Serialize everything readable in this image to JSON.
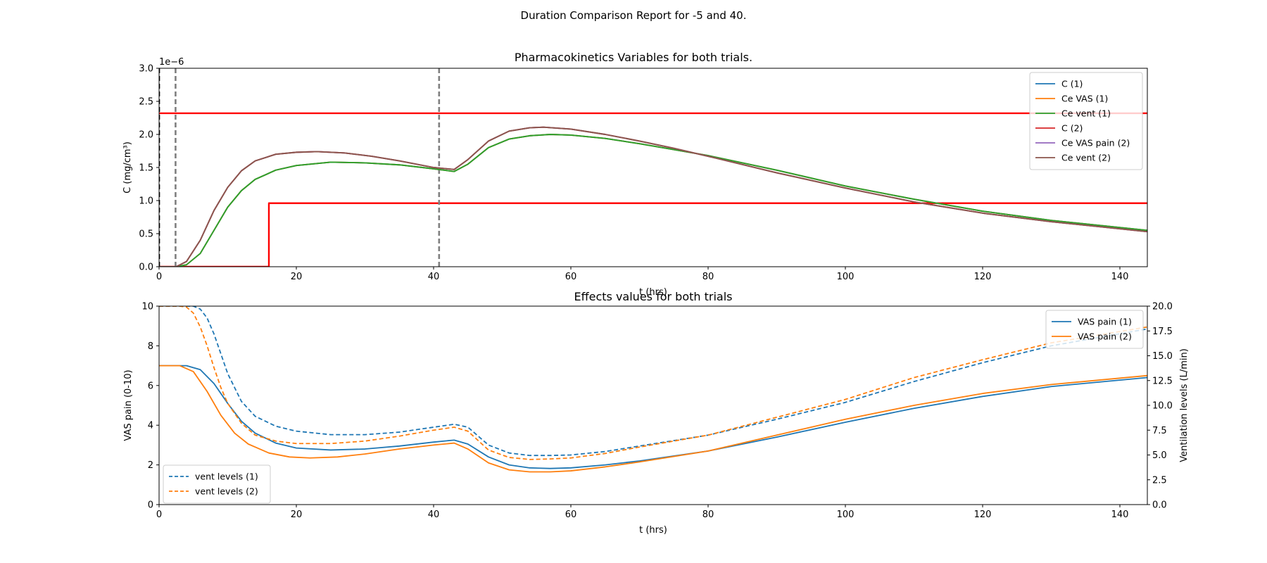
{
  "figure": {
    "suptitle": "Duration Comparison Report for -5 and 40."
  },
  "colors": {
    "blue": "#1f77b4",
    "orange": "#ff7f0e",
    "green": "#2ca02c",
    "red": "#d62728",
    "purple": "#9467bd",
    "brown": "#8c564b",
    "threshold": "#ff0000",
    "marker": "#808080"
  },
  "chart_data": [
    {
      "type": "line",
      "title": "Pharmacokinetics Variables for both trials.",
      "xlabel": "t (hrs)",
      "ylabel": "C (mg/cm³)",
      "offset_text": "1e−6",
      "xlim": [
        0,
        144
      ],
      "ylim": [
        0,
        3.0
      ],
      "xticks": [
        0,
        20,
        40,
        60,
        80,
        100,
        120,
        140
      ],
      "yticks": [
        0.0,
        0.5,
        1.0,
        1.5,
        2.0,
        2.5,
        3.0
      ],
      "grid": false,
      "legend_position": "top-right",
      "series": [
        {
          "name": "C (1)",
          "color": "#1f77b4",
          "x": [
            0,
            2.5,
            4,
            6,
            8,
            10,
            12,
            14,
            17,
            20,
            25,
            30,
            35,
            40,
            43,
            45,
            48,
            51,
            54,
            57,
            60,
            65,
            70,
            75,
            80,
            90,
            100,
            110,
            120,
            130,
            144
          ],
          "y": [
            0,
            0,
            0.03,
            0.2,
            0.55,
            0.9,
            1.15,
            1.32,
            1.46,
            1.53,
            1.58,
            1.57,
            1.54,
            1.48,
            1.44,
            1.55,
            1.8,
            1.93,
            1.98,
            2.0,
            1.99,
            1.94,
            1.86,
            1.77,
            1.68,
            1.46,
            1.22,
            1.02,
            0.84,
            0.7,
            0.55
          ]
        },
        {
          "name": "Ce VAS (1)",
          "color": "#ff7f0e",
          "x": [
            0,
            2.5,
            4,
            6,
            8,
            10,
            12,
            14,
            17,
            20,
            25,
            30,
            35,
            40,
            43,
            45,
            48,
            51,
            54,
            57,
            60,
            65,
            70,
            75,
            80,
            90,
            100,
            110,
            120,
            130,
            144
          ],
          "y": [
            0,
            0,
            0.03,
            0.2,
            0.55,
            0.9,
            1.15,
            1.32,
            1.46,
            1.53,
            1.58,
            1.57,
            1.54,
            1.48,
            1.44,
            1.55,
            1.8,
            1.93,
            1.98,
            2.0,
            1.99,
            1.94,
            1.86,
            1.77,
            1.68,
            1.46,
            1.22,
            1.02,
            0.84,
            0.7,
            0.55
          ]
        },
        {
          "name": "Ce vent (1)",
          "color": "#2ca02c",
          "x": [
            0,
            2.5,
            4,
            6,
            8,
            10,
            12,
            14,
            17,
            20,
            25,
            30,
            35,
            40,
            43,
            45,
            48,
            51,
            54,
            57,
            60,
            65,
            70,
            75,
            80,
            90,
            100,
            110,
            120,
            130,
            144
          ],
          "y": [
            0,
            0,
            0.03,
            0.2,
            0.55,
            0.9,
            1.15,
            1.32,
            1.46,
            1.53,
            1.58,
            1.57,
            1.54,
            1.48,
            1.44,
            1.55,
            1.8,
            1.93,
            1.98,
            2.0,
            1.99,
            1.94,
            1.86,
            1.77,
            1.68,
            1.46,
            1.22,
            1.02,
            0.84,
            0.7,
            0.55
          ]
        },
        {
          "name": "C (2)",
          "color": "#d62728",
          "x": [
            0,
            2.5,
            4,
            6,
            8,
            10,
            12,
            14,
            17,
            20,
            23,
            27,
            31,
            35,
            40,
            43,
            45,
            48,
            51,
            54,
            56,
            60,
            65,
            70,
            75,
            80,
            90,
            100,
            110,
            120,
            130,
            144
          ],
          "y": [
            0,
            0,
            0.08,
            0.4,
            0.85,
            1.2,
            1.45,
            1.6,
            1.7,
            1.73,
            1.74,
            1.72,
            1.67,
            1.6,
            1.5,
            1.47,
            1.62,
            1.9,
            2.05,
            2.1,
            2.11,
            2.08,
            2.0,
            1.9,
            1.79,
            1.67,
            1.42,
            1.19,
            0.98,
            0.81,
            0.68,
            0.53
          ]
        },
        {
          "name": "Ce VAS pain (2)",
          "color": "#9467bd",
          "x": [
            0,
            2.5,
            4,
            6,
            8,
            10,
            12,
            14,
            17,
            20,
            23,
            27,
            31,
            35,
            40,
            43,
            45,
            48,
            51,
            54,
            56,
            60,
            65,
            70,
            75,
            80,
            90,
            100,
            110,
            120,
            130,
            144
          ],
          "y": [
            0,
            0,
            0.08,
            0.4,
            0.85,
            1.2,
            1.45,
            1.6,
            1.7,
            1.73,
            1.74,
            1.72,
            1.67,
            1.6,
            1.5,
            1.47,
            1.62,
            1.9,
            2.05,
            2.1,
            2.11,
            2.08,
            2.0,
            1.9,
            1.79,
            1.67,
            1.42,
            1.19,
            0.98,
            0.81,
            0.68,
            0.53
          ]
        },
        {
          "name": "Ce vent (2)",
          "color": "#8c564b",
          "x": [
            0,
            2.5,
            4,
            6,
            8,
            10,
            12,
            14,
            17,
            20,
            23,
            27,
            31,
            35,
            40,
            43,
            45,
            48,
            51,
            54,
            56,
            60,
            65,
            70,
            75,
            80,
            90,
            100,
            110,
            120,
            130,
            144
          ],
          "y": [
            0,
            0,
            0.08,
            0.4,
            0.85,
            1.2,
            1.45,
            1.6,
            1.7,
            1.73,
            1.74,
            1.72,
            1.67,
            1.6,
            1.5,
            1.47,
            1.62,
            1.9,
            2.05,
            2.1,
            2.11,
            2.08,
            2.0,
            1.9,
            1.79,
            1.67,
            1.42,
            1.19,
            0.98,
            0.81,
            0.68,
            0.53
          ]
        }
      ],
      "reference_lines": [
        {
          "color": "#ff0000",
          "x": [
            0,
            144
          ],
          "y": [
            2.32,
            2.32
          ]
        },
        {
          "color": "#ff0000",
          "x": [
            0,
            16,
            16,
            144
          ],
          "y": [
            0,
            0,
            0.96,
            0.96
          ]
        },
        {
          "color": "#000000",
          "dash": "dashed",
          "x": [
            0,
            0
          ],
          "y": [
            0,
            3.0
          ]
        },
        {
          "color": "#808080",
          "dash": "dashed",
          "x": [
            2.4,
            2.4
          ],
          "y": [
            0,
            3.0
          ]
        },
        {
          "color": "#808080",
          "dash": "dashed",
          "x": [
            40.8,
            40.8
          ],
          "y": [
            0,
            3.0
          ]
        }
      ]
    },
    {
      "type": "line",
      "title": "Effects values for both trials",
      "xlabel": "t (hrs)",
      "ylabel": "VAS pain (0-10)",
      "y2label": "Ventilation levels (L/min)",
      "xlim": [
        0,
        144
      ],
      "ylim": [
        0,
        10
      ],
      "y2lim": [
        0,
        20
      ],
      "xticks": [
        0,
        20,
        40,
        60,
        80,
        100,
        120,
        140
      ],
      "yticks": [
        0,
        2,
        4,
        6,
        8,
        10
      ],
      "y2ticks": [
        0.0,
        2.5,
        5.0,
        7.5,
        10.0,
        12.5,
        15.0,
        17.5,
        20.0
      ],
      "grid": false,
      "legend_position": "top-right",
      "legend2_position": "bottom-left",
      "series": [
        {
          "name": "VAS pain (1)",
          "color": "#1f77b4",
          "axis": "left",
          "x": [
            0,
            4,
            6,
            8,
            10,
            12,
            14,
            17,
            20,
            25,
            30,
            35,
            40,
            43,
            45,
            48,
            51,
            54,
            57,
            60,
            65,
            70,
            80,
            90,
            100,
            110,
            120,
            130,
            144
          ],
          "y": [
            7,
            7,
            6.8,
            6.1,
            5.1,
            4.2,
            3.6,
            3.1,
            2.85,
            2.75,
            2.8,
            2.95,
            3.15,
            3.25,
            3.05,
            2.4,
            2.0,
            1.85,
            1.82,
            1.85,
            2.0,
            2.2,
            2.7,
            3.4,
            4.15,
            4.85,
            5.45,
            5.95,
            6.4
          ]
        },
        {
          "name": "VAS pain (2)",
          "color": "#ff7f0e",
          "axis": "left",
          "x": [
            0,
            3,
            5,
            7,
            9,
            11,
            13,
            16,
            19,
            22,
            26,
            30,
            35,
            40,
            43,
            45,
            48,
            51,
            54,
            57,
            60,
            65,
            70,
            80,
            90,
            100,
            110,
            120,
            130,
            144
          ],
          "y": [
            7,
            7,
            6.7,
            5.7,
            4.5,
            3.6,
            3.05,
            2.6,
            2.4,
            2.35,
            2.4,
            2.55,
            2.8,
            3.0,
            3.1,
            2.8,
            2.1,
            1.75,
            1.65,
            1.65,
            1.7,
            1.9,
            2.15,
            2.7,
            3.5,
            4.3,
            5.0,
            5.6,
            6.05,
            6.5
          ]
        },
        {
          "name": "vent levels (1)",
          "color": "#1f77b4",
          "axis": "right",
          "dash": "dashed",
          "x": [
            0,
            4,
            5,
            6,
            7,
            8,
            9,
            10,
            12,
            14,
            17,
            20,
            25,
            30,
            35,
            40,
            43,
            45,
            48,
            51,
            54,
            57,
            60,
            65,
            70,
            80,
            90,
            100,
            110,
            120,
            130,
            144
          ],
          "y": [
            20,
            20,
            20,
            19.7,
            18.8,
            17.2,
            15.2,
            13.2,
            10.4,
            8.9,
            7.9,
            7.4,
            7.05,
            7.05,
            7.3,
            7.8,
            8.1,
            7.8,
            6.0,
            5.2,
            4.95,
            4.95,
            5.0,
            5.35,
            5.9,
            7.0,
            8.6,
            10.3,
            12.4,
            14.3,
            16.0,
            17.7
          ]
        },
        {
          "name": "vent levels (2)",
          "color": "#ff7f0e",
          "axis": "right",
          "dash": "dashed",
          "x": [
            0,
            3,
            4,
            5,
            6,
            7,
            8,
            9,
            10,
            12,
            14,
            17,
            20,
            25,
            30,
            35,
            40,
            43,
            45,
            48,
            51,
            54,
            57,
            60,
            65,
            70,
            80,
            90,
            100,
            110,
            120,
            130,
            144
          ],
          "y": [
            20,
            20,
            19.9,
            19.3,
            17.9,
            16.0,
            13.8,
            11.8,
            10.2,
            8.2,
            7.0,
            6.4,
            6.15,
            6.15,
            6.4,
            6.9,
            7.5,
            7.8,
            7.4,
            5.5,
            4.75,
            4.55,
            4.6,
            4.7,
            5.15,
            5.8,
            7.0,
            8.8,
            10.6,
            12.8,
            14.6,
            16.3,
            17.9
          ]
        }
      ]
    }
  ]
}
